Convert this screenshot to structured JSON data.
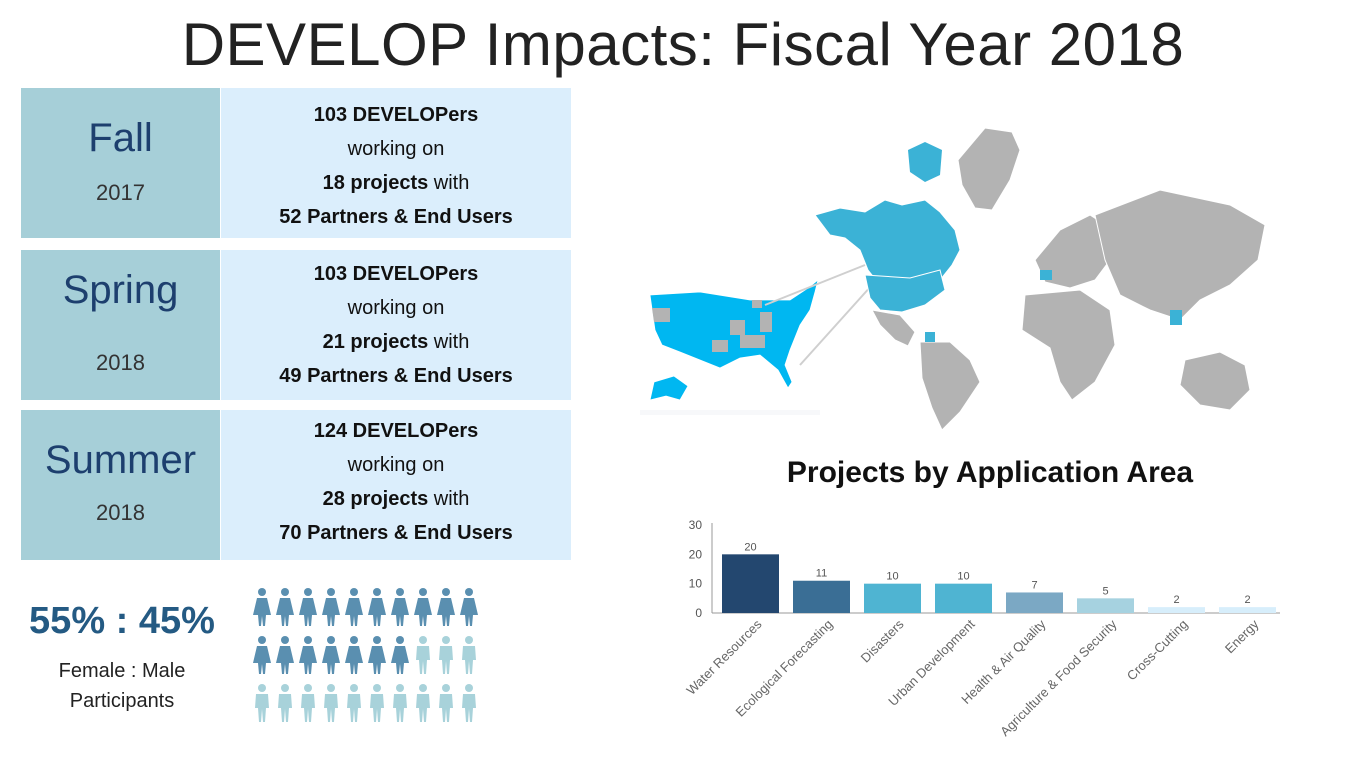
{
  "title": "DEVELOP Impacts: Fiscal Year 2018",
  "terms": [
    {
      "season": "Fall",
      "year": "2017",
      "developers": "103 DEVELOPers",
      "working": "working on",
      "projects": "18 projects",
      "with": " with",
      "partners": "52 Partners & End Users"
    },
    {
      "season": "Spring",
      "year": "2018",
      "developers": "103 DEVELOPers",
      "working": "working on",
      "projects": "21 projects",
      "with": " with",
      "partners": "49 Partners & End Users"
    },
    {
      "season": "Summer",
      "year": "2018",
      "developers": "124 DEVELOPers",
      "working": "working on",
      "projects": "28 projects",
      "with": " with",
      "partners": "70 Partners & End Users"
    }
  ],
  "participants": {
    "ratio": "55% : 45%",
    "caption_line1": "Female : Male",
    "caption_line2": "Participants",
    "female_icons": 17,
    "total_icons": 30
  },
  "colors": {
    "female_icon": "#5a8fb0",
    "male_icon": "#a8d2da",
    "map_highlight": "#3bb2d6",
    "map_us": "#00b7f1",
    "map_other": "#b3b3b3"
  },
  "chart_data": {
    "type": "bar",
    "title": "Projects by Application Area",
    "categories": [
      "Water Resources",
      "Ecological Forecasting",
      "Disasters",
      "Urban Development",
      "Health & Air Quality",
      "Agriculture & Food Security",
      "Cross-Cutting",
      "Energy"
    ],
    "values": [
      20,
      11,
      10,
      10,
      7,
      5,
      2,
      2
    ],
    "colors": [
      "#23476f",
      "#3a6e95",
      "#4fb4d2",
      "#4fb4d2",
      "#7ba8c4",
      "#a6d2e0",
      "#d7eefb",
      "#d7eefb"
    ],
    "yticks": [
      0,
      10,
      20,
      30
    ],
    "ylim": [
      0,
      30
    ],
    "xlabel": "",
    "ylabel": "",
    "grid": false
  }
}
